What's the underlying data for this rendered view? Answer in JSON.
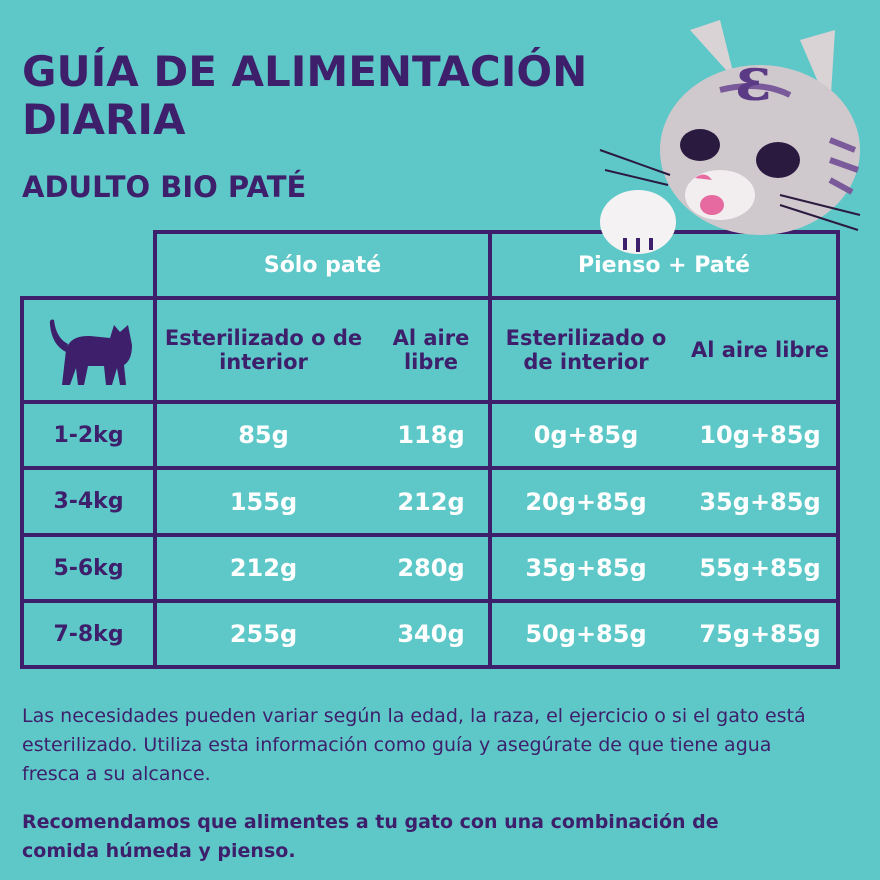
{
  "header": {
    "title": "GUÍA DE ALIMENTACIÓN DIARIA",
    "subtitle": "ADULTO BIO PATÉ"
  },
  "table": {
    "groups": [
      "Sólo paté",
      "Pienso + Paté"
    ],
    "columns": [
      "Esterilizado o de interior",
      "Al aire libre",
      "Esterilizado o de interior",
      "Al aire libre"
    ],
    "rows": [
      [
        "1-2kg",
        "85g",
        "118g",
        "0g+85g",
        "10g+85g"
      ],
      [
        "3-4kg",
        "155g",
        "212g",
        "20g+85g",
        "35g+85g"
      ],
      [
        "5-6kg",
        "212g",
        "280g",
        "35g+85g",
        "55g+85g"
      ],
      [
        "7-8kg",
        "255g",
        "340g",
        "50g+85g",
        "75g+85g"
      ]
    ]
  },
  "notes": [
    "Las necesidades pueden variar según la edad, la raza, el ejercicio o si el gato está esterilizado. Utiliza esta información como guía y asegúrate de que tiene agua fresca a su alcance.",
    "Recomendamos que alimentes a tu gato con una combinación de comida húmeda y pienso."
  ]
}
